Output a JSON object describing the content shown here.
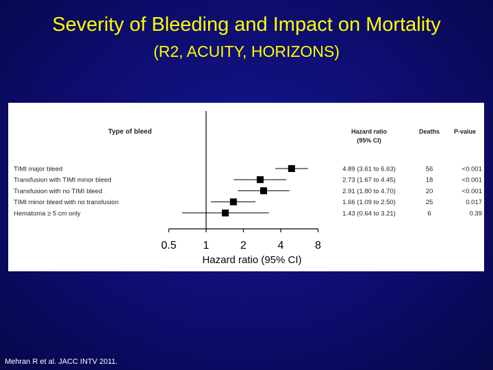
{
  "title": "Severity of Bleeding and Impact on Mortality",
  "subtitle": "(R2, ACUITY, HORIZONS)",
  "citation": "Mehran R et al.  JACC INTV 2011.",
  "colors": {
    "background": "#0d0d6e",
    "title": "#ffff00",
    "panel": "#ffffff",
    "marker": "#000000"
  },
  "chart_data": {
    "type": "forest",
    "xlabel": "Hazard ratio (95% CI)",
    "x_scale": "log",
    "xlim": [
      0.5,
      8
    ],
    "xticks": [
      "0.5",
      "1",
      "2",
      "4",
      "8"
    ],
    "reference_line": 1,
    "headers": {
      "type": "Type of bleed",
      "hr_line1": "Hazard ratio",
      "hr_line2": "(95% CI)",
      "deaths": "Deaths",
      "pvalue": "P-value"
    },
    "rows": [
      {
        "label": "TIMI major bleed",
        "hr": 4.89,
        "lo": 3.61,
        "hi": 6.63,
        "hr_text": "4.89 (3.61 to 6.63)",
        "deaths": "56",
        "p": "<0.001"
      },
      {
        "label": "Transfusion with TIMI minor bleed",
        "hr": 2.73,
        "lo": 1.67,
        "hi": 4.45,
        "hr_text": "2.73 (1.67 to 4.45)",
        "deaths": "18",
        "p": "<0.001"
      },
      {
        "label": "Transfusion with no TIMI bleed",
        "hr": 2.91,
        "lo": 1.8,
        "hi": 4.7,
        "hr_text": "2.91 (1.80 to 4.70)",
        "deaths": "20",
        "p": "<0.001"
      },
      {
        "label": "TIMI minor bleed with no transfusion",
        "hr": 1.66,
        "lo": 1.09,
        "hi": 2.5,
        "hr_text": "1.66 (1.09 to 2.50)",
        "deaths": "25",
        "p": "0.017"
      },
      {
        "label": "Hematoma ≥ 5 cm only",
        "hr": 1.43,
        "lo": 0.64,
        "hi": 3.21,
        "hr_text": "1.43 (0.64 to 3.21)",
        "deaths": "6",
        "p": "0.39"
      }
    ]
  }
}
